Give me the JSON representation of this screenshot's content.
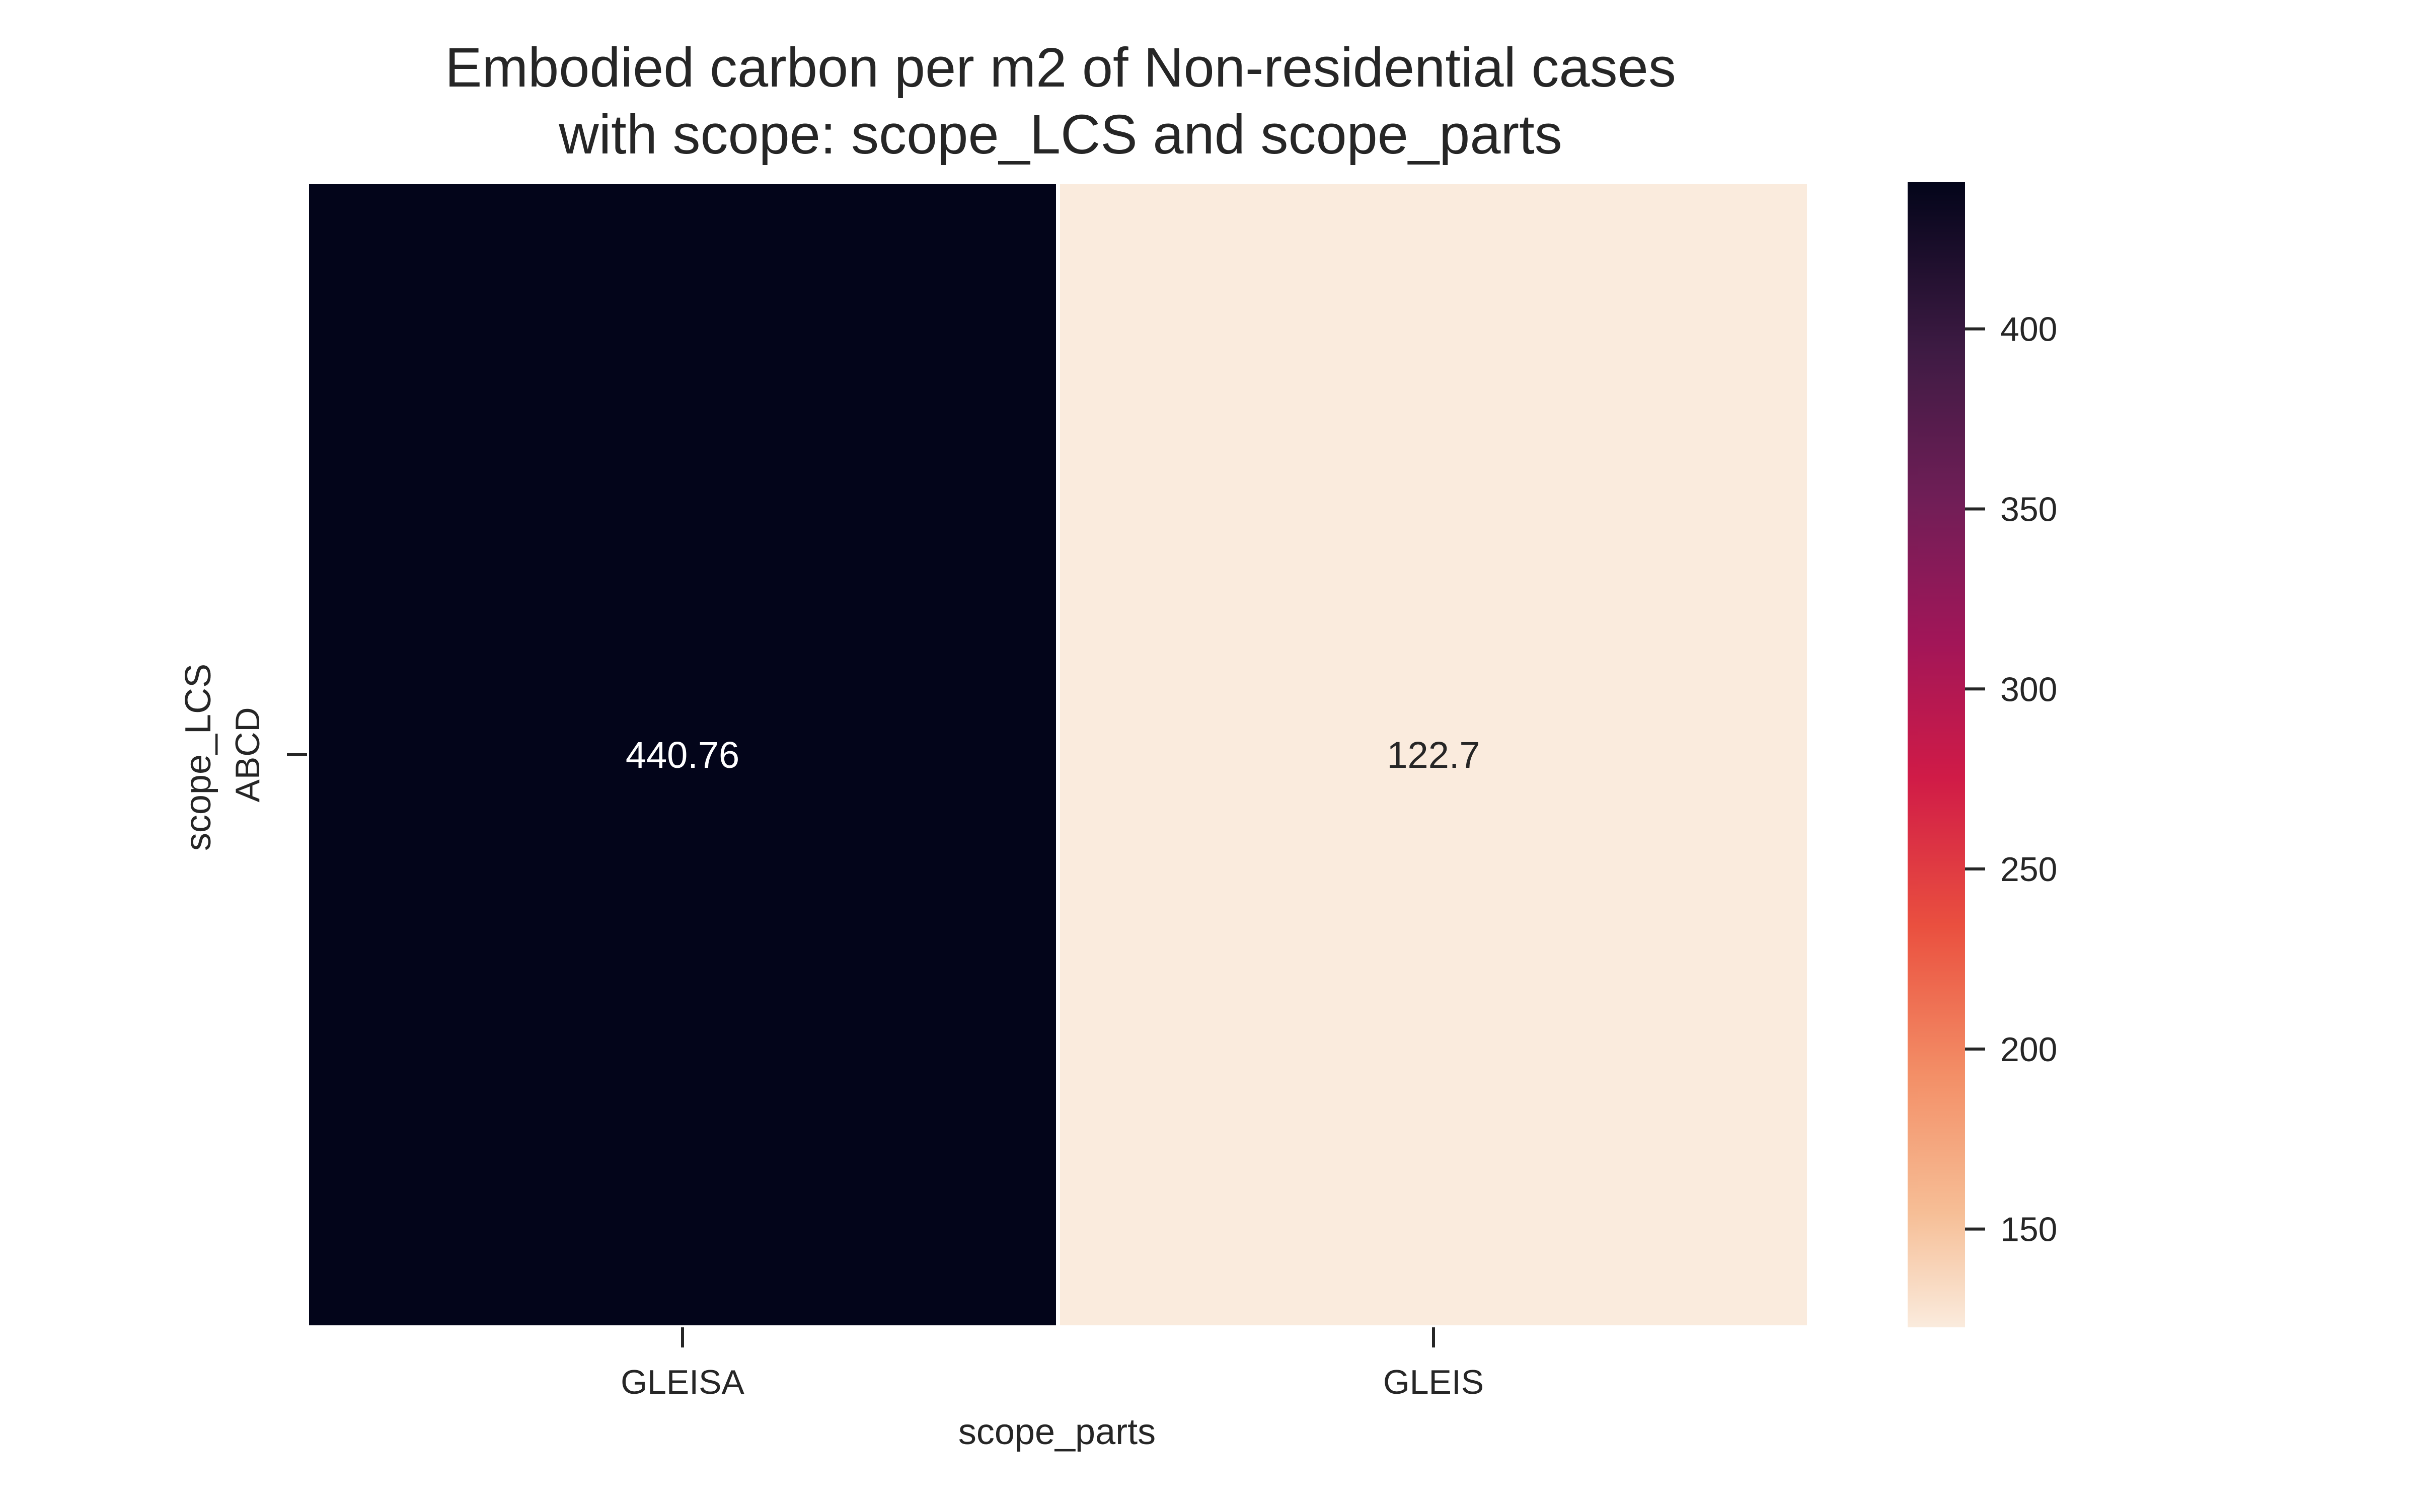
{
  "chart_data": {
    "type": "heatmap",
    "title": "Embodied carbon per m2 of Non-residential cases",
    "subtitle": "with scope: scope_LCS and scope_parts",
    "xlabel": "scope_parts",
    "ylabel": "scope_LCS",
    "x_categories": [
      "GLEISA",
      "GLEIS"
    ],
    "y_categories": [
      "ABCD"
    ],
    "values": [
      [
        440.76,
        122.7
      ]
    ],
    "cell_labels": [
      [
        "440.76",
        "122.7"
      ]
    ],
    "colorbar": {
      "colormap": "rocket_r",
      "vmin": 122.7,
      "vmax": 440.76,
      "ticks": [
        150,
        200,
        250,
        300,
        350,
        400
      ],
      "tick_labels": [
        "150",
        "200",
        "250",
        "300",
        "350",
        "400"
      ]
    }
  }
}
